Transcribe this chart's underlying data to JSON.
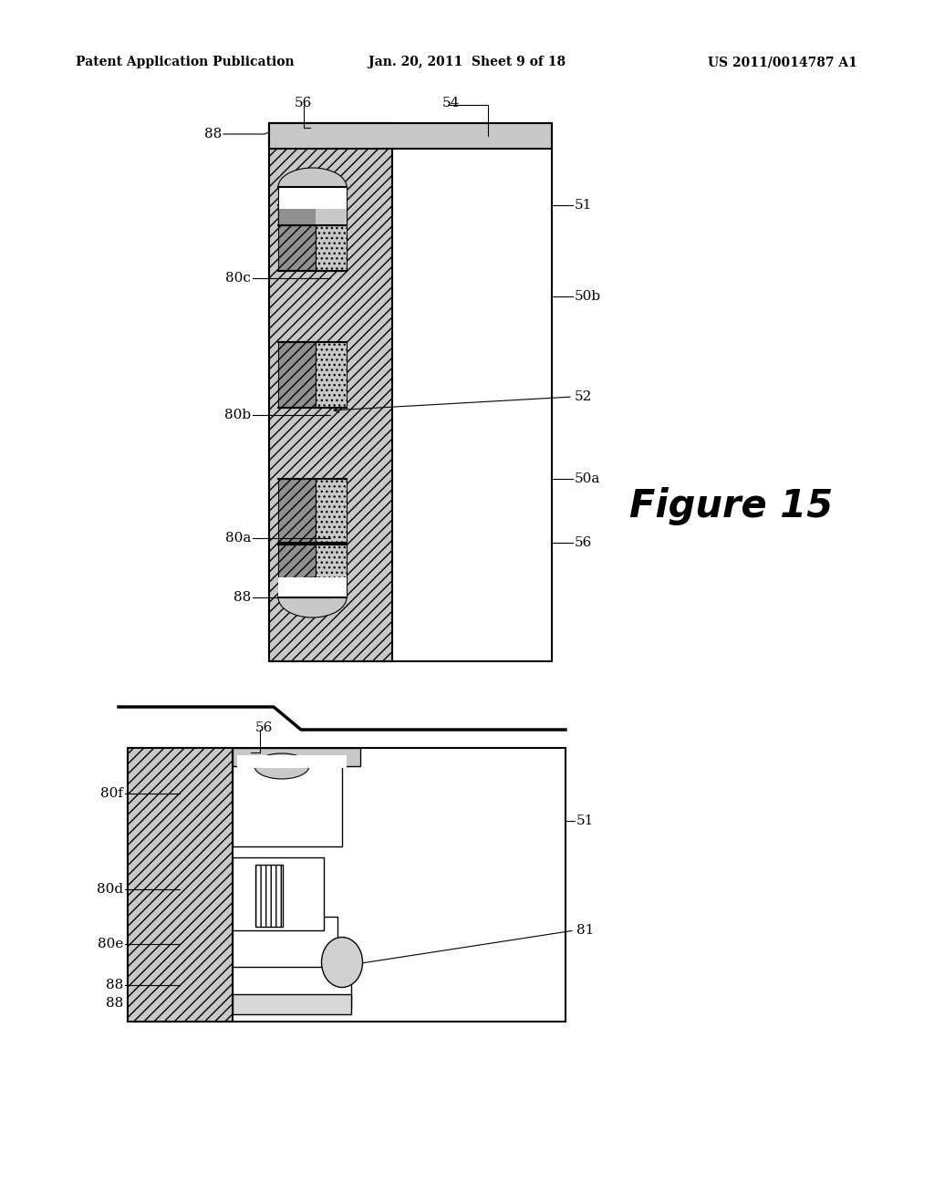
{
  "bg_color": "#ffffff",
  "header_left": "Patent Application Publication",
  "header_mid": "Jan. 20, 2011  Sheet 9 of 18",
  "header_right": "US 2011/0014787 A1",
  "figure_label": "Figure 15",
  "hatch_color_main": "#c8c8c8",
  "hatch_color_contact_left": "#a0a0a0",
  "hatch_color_contact_right": "#d8d8d8",
  "cap_color": "#c8c8c8",
  "white": "#ffffff",
  "black": "#000000"
}
